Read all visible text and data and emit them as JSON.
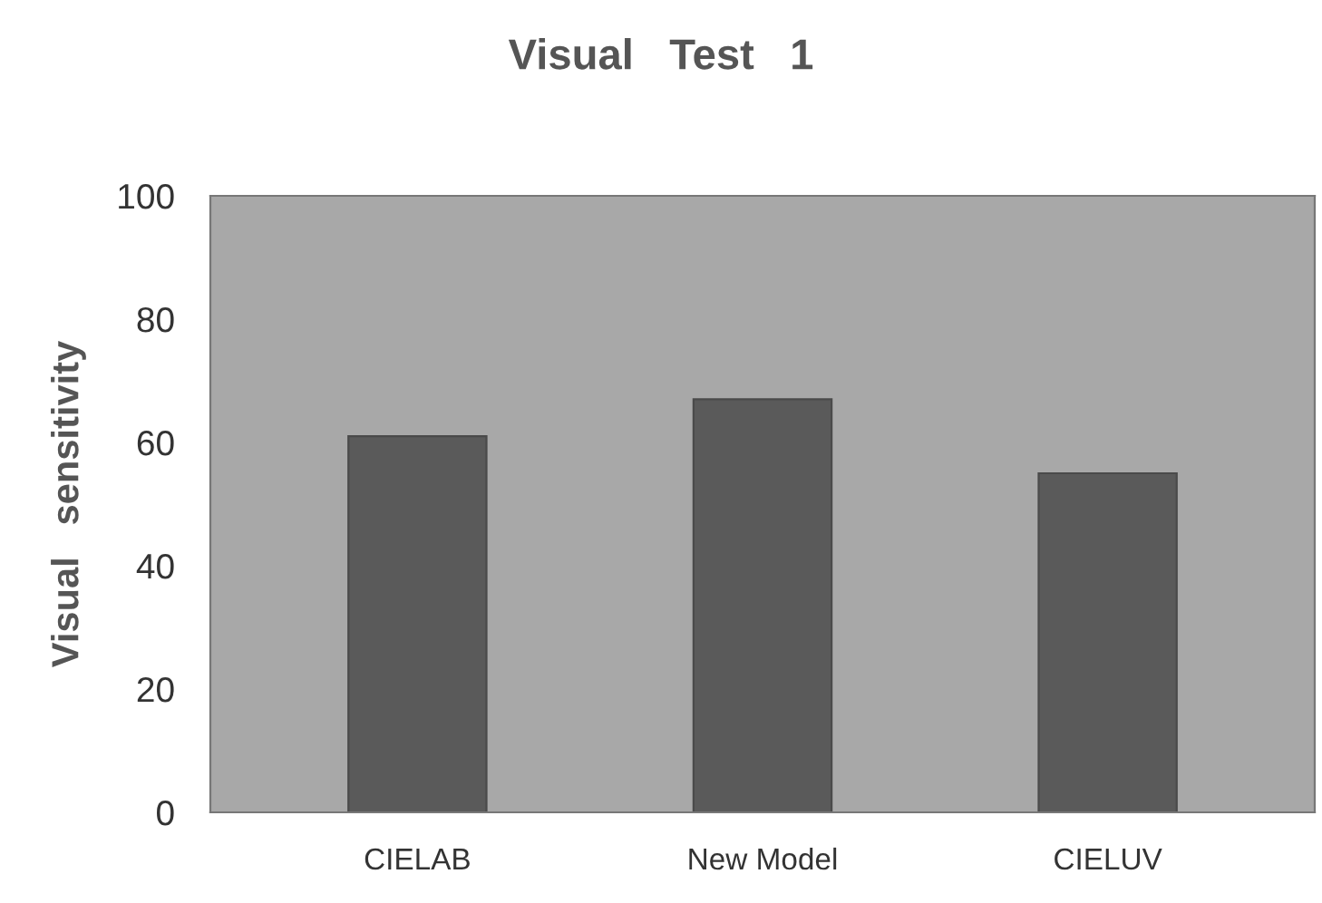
{
  "chart_data": {
    "type": "bar",
    "title": "Visual   Test   1",
    "ylabel": "Visual   sensitivity",
    "categories": [
      "CIELAB",
      "New Model",
      "CIELUV"
    ],
    "values": [
      61,
      67,
      55
    ],
    "color": "#5a5a5a",
    "ylim": [
      0,
      100
    ],
    "yticks": [
      0,
      20,
      40,
      60,
      80,
      100
    ],
    "grid": false,
    "legend": false
  }
}
